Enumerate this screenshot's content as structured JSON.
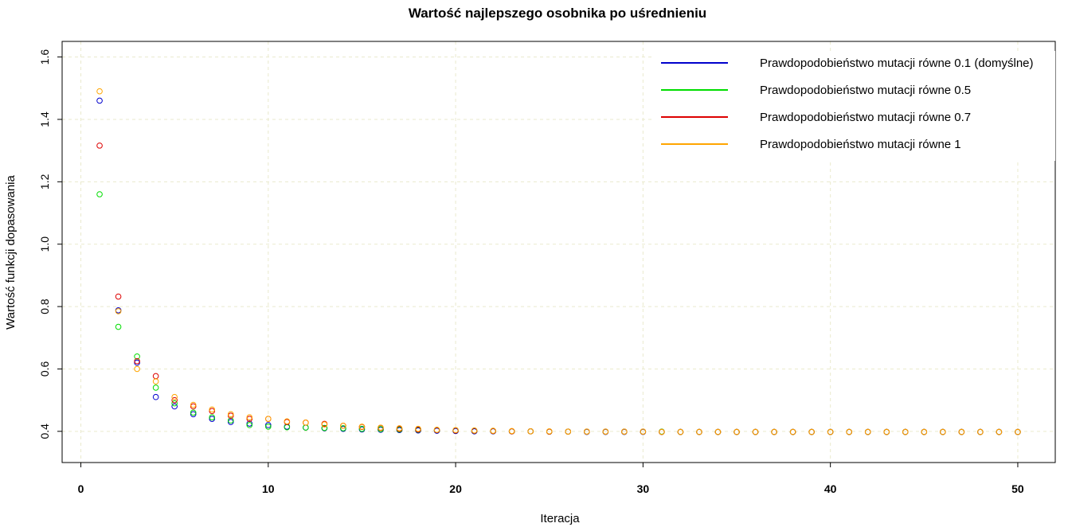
{
  "chart_data": {
    "type": "scatter",
    "title": "Wartość najlepszego osobnika po uśrednieniu",
    "xlabel": "Iteracja",
    "ylabel": "Wartość funkcji dopasowania",
    "xlim": [
      -1,
      52
    ],
    "ylim": [
      0.3,
      1.65
    ],
    "xticks": [
      0,
      10,
      20,
      30,
      40,
      50
    ],
    "yticks": [
      0.4,
      0.6,
      0.8,
      1.0,
      1.2,
      1.4,
      1.6
    ],
    "ytick_labels": [
      "0.4",
      "0.6",
      "0.8",
      "1.0",
      "1.2",
      "1.4",
      "1.6"
    ],
    "grid": true,
    "legend_position": "top-right",
    "series": [
      {
        "name": "Prawdopodobieństwo mutacji równe 0.1 (domyślne)",
        "color": "#0000cc",
        "x": [
          1,
          2,
          3,
          4,
          5,
          6,
          7,
          8,
          9,
          10,
          11,
          12,
          13,
          14,
          15,
          16,
          17,
          18,
          19,
          20,
          21,
          22,
          23,
          24,
          25,
          26,
          27,
          28,
          29,
          30,
          31,
          32,
          33,
          34,
          35,
          36,
          37,
          38,
          39,
          40,
          41,
          42,
          43,
          44,
          45,
          46,
          47,
          48,
          49,
          50
        ],
        "y": [
          1.46,
          0.788,
          0.62,
          0.51,
          0.48,
          0.455,
          0.44,
          0.43,
          0.425,
          0.42,
          0.415,
          0.412,
          0.41,
          0.408,
          0.406,
          0.405,
          0.404,
          0.403,
          0.402,
          0.401,
          0.4,
          0.4,
          0.4,
          0.4,
          0.399,
          0.399,
          0.398,
          0.398,
          0.398,
          0.398,
          0.398,
          0.398,
          0.398,
          0.398,
          0.398,
          0.398,
          0.398,
          0.398,
          0.398,
          0.398,
          0.398,
          0.398,
          0.398,
          0.398,
          0.398,
          0.398,
          0.398,
          0.398,
          0.398,
          0.398
        ]
      },
      {
        "name": "Prawdopodobieństwo mutacji równe 0.5",
        "color": "#00dd00",
        "x": [
          1,
          2,
          3,
          4,
          5,
          6,
          7,
          8,
          9,
          10,
          11,
          12,
          13,
          14,
          15,
          16,
          17,
          18,
          19,
          20,
          21,
          22,
          23,
          24,
          25,
          26,
          27,
          28,
          29,
          30,
          31,
          32,
          33,
          34,
          35,
          36,
          37,
          38,
          39,
          40,
          41,
          42,
          43,
          44,
          45,
          46,
          47,
          48,
          49,
          50
        ],
        "y": [
          1.16,
          0.735,
          0.64,
          0.54,
          0.49,
          0.46,
          0.445,
          0.435,
          0.42,
          0.415,
          0.413,
          0.412,
          0.411,
          0.41,
          0.408,
          0.407,
          0.406,
          0.405,
          0.404,
          0.403,
          0.402,
          0.401,
          0.4,
          0.4,
          0.399,
          0.399,
          0.399,
          0.399,
          0.399,
          0.399,
          0.399,
          0.398,
          0.398,
          0.398,
          0.398,
          0.398,
          0.398,
          0.398,
          0.398,
          0.398,
          0.398,
          0.398,
          0.398,
          0.398,
          0.398,
          0.398,
          0.398,
          0.398,
          0.398,
          0.398
        ]
      },
      {
        "name": "Prawdopodobieństwo mutacji równe 0.7",
        "color": "#dd0000",
        "x": [
          1,
          2,
          3,
          4,
          5,
          6,
          7,
          8,
          9,
          10,
          11,
          12,
          13,
          14,
          15,
          16,
          17,
          18,
          19,
          20,
          21,
          22,
          23,
          24,
          25,
          26,
          27,
          28,
          29,
          30,
          31,
          32,
          33,
          34,
          35,
          36,
          37,
          38,
          39,
          40,
          41,
          42,
          43,
          44,
          45,
          46,
          47,
          48,
          49,
          50
        ],
        "y": [
          1.316,
          0.832,
          0.625,
          0.577,
          0.5,
          0.48,
          0.465,
          0.45,
          0.44,
          0.44,
          0.43,
          0.428,
          0.424,
          0.418,
          0.414,
          0.411,
          0.408,
          0.406,
          0.404,
          0.403,
          0.402,
          0.401,
          0.4,
          0.4,
          0.399,
          0.399,
          0.399,
          0.399,
          0.399,
          0.399,
          0.398,
          0.398,
          0.398,
          0.398,
          0.398,
          0.398,
          0.398,
          0.398,
          0.398,
          0.398,
          0.398,
          0.398,
          0.398,
          0.398,
          0.398,
          0.398,
          0.398,
          0.398,
          0.398,
          0.398
        ]
      },
      {
        "name": "Prawdopodobieństwo mutacji równe 1",
        "color": "#ffa500",
        "x": [
          1,
          2,
          3,
          4,
          5,
          6,
          7,
          8,
          9,
          10,
          11,
          12,
          13,
          14,
          15,
          16,
          17,
          18,
          19,
          20,
          21,
          22,
          23,
          24,
          25,
          26,
          27,
          28,
          29,
          30,
          31,
          32,
          33,
          34,
          35,
          36,
          37,
          38,
          39,
          40,
          41,
          42,
          43,
          44,
          45,
          46,
          47,
          48,
          49,
          50
        ],
        "y": [
          1.49,
          0.785,
          0.6,
          0.56,
          0.51,
          0.485,
          0.47,
          0.455,
          0.445,
          0.44,
          0.432,
          0.428,
          0.422,
          0.418,
          0.415,
          0.412,
          0.41,
          0.408,
          0.405,
          0.404,
          0.403,
          0.402,
          0.401,
          0.4,
          0.4,
          0.399,
          0.399,
          0.399,
          0.399,
          0.399,
          0.398,
          0.398,
          0.398,
          0.398,
          0.398,
          0.398,
          0.398,
          0.398,
          0.398,
          0.398,
          0.398,
          0.398,
          0.398,
          0.398,
          0.398,
          0.398,
          0.398,
          0.398,
          0.398,
          0.398
        ]
      }
    ]
  }
}
